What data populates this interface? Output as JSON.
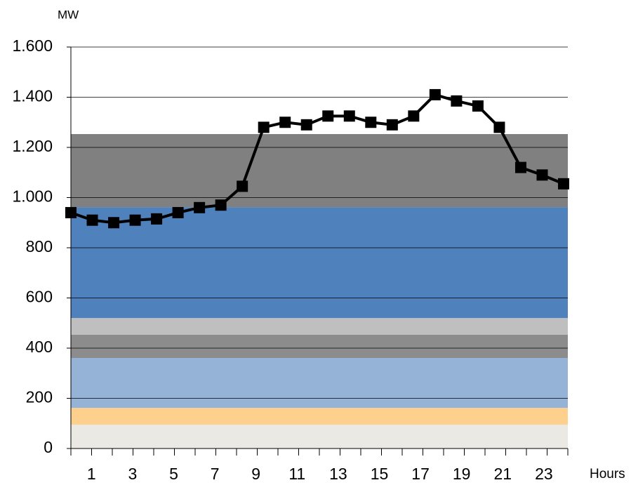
{
  "chart_data": {
    "type": "line",
    "y_label": "MW",
    "x_label": "Hours",
    "categories": [
      "1",
      null,
      "3",
      null,
      "5",
      null,
      "7",
      null,
      "9",
      null,
      "11",
      null,
      "13",
      null,
      "15",
      null,
      "17",
      null,
      "19",
      null,
      "21",
      null,
      "23",
      null
    ],
    "ylim": [
      0,
      1600
    ],
    "yticks": [
      0,
      200,
      400,
      600,
      800,
      {
        "value": 1000,
        "label": "1.000"
      },
      {
        "value": 1200,
        "label": "1.200"
      },
      {
        "value": 1400,
        "label": "1.400"
      },
      {
        "value": 1600,
        "label": "1.600"
      }
    ],
    "grid": true,
    "bands": [
      {
        "color": "#ebe9e4",
        "values": [
          95,
          95,
          95,
          95,
          95,
          95,
          95,
          95,
          95,
          95,
          95,
          95,
          95,
          95,
          95,
          95,
          95,
          95,
          95,
          95,
          95,
          95,
          95,
          95
        ]
      },
      {
        "color": "#fdd18d",
        "values": [
          67,
          67,
          67,
          67,
          67,
          67,
          67,
          67,
          67,
          67,
          67,
          67,
          67,
          67,
          67,
          67,
          67,
          67,
          67,
          67,
          67,
          67,
          67,
          67
        ]
      },
      {
        "color": "#95b3d7",
        "values": [
          199,
          199,
          199,
          199,
          199,
          199,
          199,
          199,
          199,
          199,
          199,
          199,
          199,
          199,
          199,
          199,
          199,
          199,
          199,
          199,
          199,
          199,
          199,
          199
        ]
      },
      {
        "color": "#8c8c8c",
        "values": [
          92,
          92,
          92,
          92,
          92,
          92,
          92,
          92,
          92,
          92,
          92,
          92,
          92,
          92,
          92,
          92,
          92,
          92,
          92,
          92,
          92,
          92,
          92,
          92
        ]
      },
      {
        "color": "#bfbfbf",
        "values": [
          67,
          67,
          67,
          67,
          67,
          67,
          67,
          67,
          67,
          67,
          67,
          67,
          67,
          67,
          67,
          67,
          67,
          67,
          67,
          67,
          67,
          67,
          67,
          67
        ]
      },
      {
        "color": "#4f81bd",
        "values": [
          442,
          442,
          442,
          442,
          442,
          442,
          442,
          442,
          442,
          442,
          442,
          442,
          442,
          442,
          442,
          442,
          442,
          442,
          442,
          442,
          442,
          442,
          442,
          442
        ]
      },
      {
        "color": "#808080",
        "values": [
          291,
          291,
          291,
          291,
          291,
          291,
          291,
          291,
          291,
          291,
          291,
          291,
          291,
          291,
          291,
          291,
          291,
          291,
          291,
          291,
          291,
          291,
          291,
          291
        ]
      }
    ],
    "series": [
      {
        "color": "#000000",
        "values": [
          940,
          910,
          900,
          910,
          915,
          940,
          960,
          970,
          1045,
          1280,
          1300,
          1290,
          1325,
          1325,
          1300,
          1290,
          1325,
          1410,
          1385,
          1365,
          1280,
          1120,
          1090,
          1055
        ]
      }
    ]
  }
}
